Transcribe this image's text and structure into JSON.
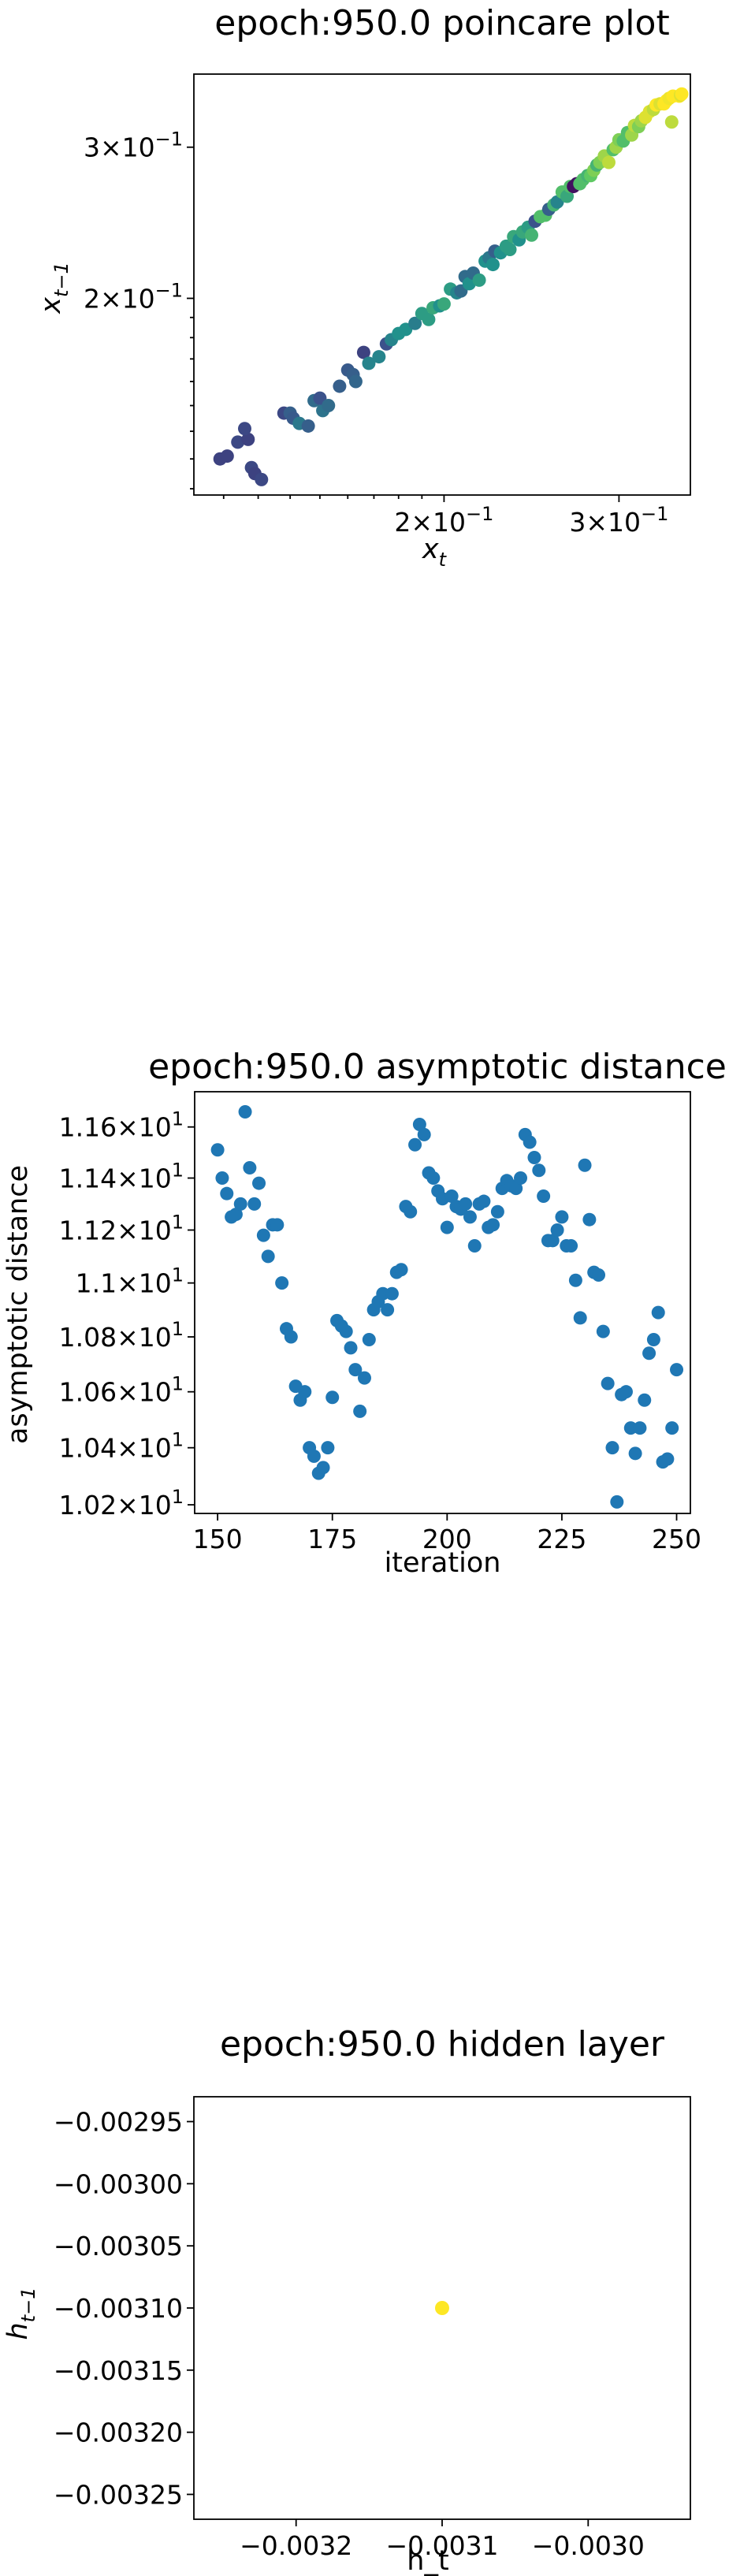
{
  "chart_data": [
    {
      "type": "scatter",
      "title": "epoch:950.0 poincare plot",
      "xlabel": "x_t",
      "ylabel": "x_{t-1}",
      "xscale": "log",
      "yscale": "log",
      "xlim": [
        0.112,
        0.354
      ],
      "ylim": [
        0.118,
        0.365
      ],
      "xticks": [
        {
          "value": 0.2,
          "label": "2 × 10^-1"
        },
        {
          "value": 0.3,
          "label": "3 × 10^-1"
        }
      ],
      "yticks": [
        {
          "value": 0.2,
          "label": "2 × 10^-1"
        },
        {
          "value": 0.3,
          "label": "3 × 10^-1"
        }
      ],
      "colormap": [
        "#440154",
        "#3b528b",
        "#21918c",
        "#5ec962",
        "#fde725"
      ],
      "points": [
        [
          0.119,
          0.13,
          0.2
        ],
        [
          0.121,
          0.131,
          0.2
        ],
        [
          0.124,
          0.136,
          0.22
        ],
        [
          0.127,
          0.137,
          0.2
        ],
        [
          0.126,
          0.141,
          0.22
        ],
        [
          0.128,
          0.127,
          0.22
        ],
        [
          0.129,
          0.125,
          0.2
        ],
        [
          0.131,
          0.123,
          0.22
        ],
        [
          0.138,
          0.147,
          0.22
        ],
        [
          0.14,
          0.147,
          0.3
        ],
        [
          0.141,
          0.145,
          0.28
        ],
        [
          0.143,
          0.143,
          0.4
        ],
        [
          0.146,
          0.142,
          0.3
        ],
        [
          0.148,
          0.152,
          0.35
        ],
        [
          0.151,
          0.148,
          0.38
        ],
        [
          0.15,
          0.153,
          0.25
        ],
        [
          0.153,
          0.15,
          0.35
        ],
        [
          0.157,
          0.158,
          0.3
        ],
        [
          0.16,
          0.165,
          0.28
        ],
        [
          0.162,
          0.163,
          0.3
        ],
        [
          0.163,
          0.16,
          0.33
        ],
        [
          0.166,
          0.173,
          0.2
        ],
        [
          0.168,
          0.168,
          0.45
        ],
        [
          0.172,
          0.171,
          0.45
        ],
        [
          0.175,
          0.177,
          0.25
        ],
        [
          0.177,
          0.179,
          0.45
        ],
        [
          0.18,
          0.182,
          0.5
        ],
        [
          0.183,
          0.184,
          0.5
        ],
        [
          0.187,
          0.187,
          0.42
        ],
        [
          0.19,
          0.192,
          0.55
        ],
        [
          0.193,
          0.189,
          0.55
        ],
        [
          0.195,
          0.195,
          0.6
        ],
        [
          0.198,
          0.196,
          0.5
        ],
        [
          0.2,
          0.197,
          0.6
        ],
        [
          0.203,
          0.205,
          0.55
        ],
        [
          0.206,
          0.203,
          0.45
        ],
        [
          0.208,
          0.204,
          0.35
        ],
        [
          0.21,
          0.212,
          0.35
        ],
        [
          0.212,
          0.208,
          0.5
        ],
        [
          0.214,
          0.214,
          0.35
        ],
        [
          0.217,
          0.21,
          0.55
        ],
        [
          0.22,
          0.221,
          0.5
        ],
        [
          0.222,
          0.223,
          0.4
        ],
        [
          0.224,
          0.219,
          0.5
        ],
        [
          0.225,
          0.227,
          0.3
        ],
        [
          0.228,
          0.226,
          0.5
        ],
        [
          0.231,
          0.23,
          0.55
        ],
        [
          0.233,
          0.228,
          0.55
        ],
        [
          0.235,
          0.236,
          0.6
        ],
        [
          0.238,
          0.234,
          0.5
        ],
        [
          0.24,
          0.239,
          0.6
        ],
        [
          0.243,
          0.242,
          0.55
        ],
        [
          0.245,
          0.237,
          0.65
        ],
        [
          0.247,
          0.246,
          0.25
        ],
        [
          0.25,
          0.249,
          0.7
        ],
        [
          0.253,
          0.25,
          0.7
        ],
        [
          0.255,
          0.254,
          0.3
        ],
        [
          0.258,
          0.257,
          0.65
        ],
        [
          0.26,
          0.259,
          0.45
        ],
        [
          0.263,
          0.266,
          0.7
        ],
        [
          0.266,
          0.263,
          0.6
        ],
        [
          0.268,
          0.27,
          0.7
        ],
        [
          0.27,
          0.27,
          0.05
        ],
        [
          0.272,
          0.272,
          0.05
        ],
        [
          0.274,
          0.272,
          0.7
        ],
        [
          0.276,
          0.275,
          0.7
        ],
        [
          0.279,
          0.278,
          0.65
        ],
        [
          0.281,
          0.278,
          0.75
        ],
        [
          0.283,
          0.282,
          0.8
        ],
        [
          0.285,
          0.286,
          0.65
        ],
        [
          0.287,
          0.288,
          0.8
        ],
        [
          0.29,
          0.293,
          0.85
        ],
        [
          0.293,
          0.288,
          0.9
        ],
        [
          0.296,
          0.298,
          0.7
        ],
        [
          0.298,
          0.3,
          0.85
        ],
        [
          0.3,
          0.306,
          0.8
        ],
        [
          0.303,
          0.305,
          0.7
        ],
        [
          0.306,
          0.312,
          0.7
        ],
        [
          0.309,
          0.31,
          0.85
        ],
        [
          0.311,
          0.318,
          0.9
        ],
        [
          0.314,
          0.317,
          0.8
        ],
        [
          0.316,
          0.322,
          0.85
        ],
        [
          0.319,
          0.325,
          0.95
        ],
        [
          0.322,
          0.33,
          0.95
        ],
        [
          0.325,
          0.332,
          0.9
        ],
        [
          0.327,
          0.336,
          1.0
        ],
        [
          0.33,
          0.337,
          0.95
        ],
        [
          0.333,
          0.337,
          1.0
        ],
        [
          0.335,
          0.34,
          1.0
        ],
        [
          0.337,
          0.342,
          0.98
        ],
        [
          0.34,
          0.344,
          1.0
        ],
        [
          0.345,
          0.344,
          1.0
        ],
        [
          0.346,
          0.345,
          0.95
        ],
        [
          0.347,
          0.346,
          1.0
        ],
        [
          0.339,
          0.321,
          0.9
        ]
      ]
    },
    {
      "type": "scatter",
      "title": "epoch:950.0 asymptotic distance",
      "xlabel": "iteration",
      "ylabel": "asymptotic distance",
      "yscale": "log",
      "xlim": [
        145,
        253
      ],
      "ylim": [
        10.17,
        11.74
      ],
      "xticks": [
        150,
        175,
        200,
        225,
        250
      ],
      "yticks": [
        {
          "value": 10.2,
          "label": "1.02 × 10^1"
        },
        {
          "value": 10.4,
          "label": "1.04 × 10^1"
        },
        {
          "value": 10.6,
          "label": "1.06 × 10^1"
        },
        {
          "value": 10.8,
          "label": "1.08 × 10^1"
        },
        {
          "value": 11.0,
          "label": "1.1 × 10^1"
        },
        {
          "value": 11.2,
          "label": "1.12 × 10^1"
        },
        {
          "value": 11.4,
          "label": "1.14 × 10^1"
        },
        {
          "value": 11.6,
          "label": "1.16 × 10^1"
        }
      ],
      "color": "#1f77b4",
      "x": [
        150,
        151,
        152,
        153,
        154,
        155,
        156,
        157,
        158,
        159,
        160,
        161,
        162,
        163,
        164,
        165,
        166,
        167,
        168,
        169,
        170,
        171,
        172,
        173,
        174,
        175,
        176,
        177,
        178,
        179,
        180,
        181,
        182,
        183,
        184,
        185,
        186,
        187,
        188,
        189,
        190,
        191,
        192,
        193,
        194,
        195,
        196,
        197,
        198,
        199,
        200,
        201,
        202,
        203,
        204,
        205,
        206,
        207,
        208,
        209,
        210,
        211,
        212,
        213,
        214,
        215,
        216,
        217,
        218,
        219,
        220,
        221,
        222,
        223,
        224,
        225,
        226,
        227,
        228,
        229,
        230,
        231,
        232,
        233,
        234,
        235,
        236,
        237,
        238,
        239,
        240,
        241,
        242,
        243,
        244,
        245,
        246,
        247,
        248,
        249,
        250
      ],
      "y": [
        11.51,
        11.4,
        11.34,
        11.25,
        11.26,
        11.3,
        11.66,
        11.44,
        11.3,
        11.38,
        11.18,
        11.1,
        11.22,
        11.22,
        11.0,
        10.83,
        10.8,
        10.62,
        10.57,
        10.6,
        10.4,
        10.37,
        10.31,
        10.33,
        10.4,
        10.58,
        10.86,
        10.84,
        10.82,
        10.76,
        10.68,
        10.53,
        10.65,
        10.79,
        10.9,
        10.93,
        10.96,
        10.9,
        10.96,
        11.04,
        11.05,
        11.29,
        11.27,
        11.53,
        11.61,
        11.57,
        11.42,
        11.4,
        11.35,
        11.32,
        11.21,
        11.33,
        11.29,
        11.28,
        11.3,
        11.25,
        11.14,
        11.3,
        11.31,
        11.21,
        11.22,
        11.27,
        11.36,
        11.39,
        11.37,
        11.36,
        11.4,
        11.57,
        11.54,
        11.48,
        11.43,
        11.33,
        11.16,
        11.16,
        11.2,
        11.25,
        11.14,
        11.14,
        11.01,
        10.87,
        11.45,
        11.24,
        11.04,
        11.03,
        10.82,
        10.63,
        10.4,
        10.21,
        10.59,
        10.6,
        10.47,
        10.38,
        10.47,
        10.57,
        10.74,
        10.79,
        10.89,
        10.35,
        10.36,
        10.47,
        10.68
      ]
    },
    {
      "type": "scatter",
      "title": "epoch:950.0 hidden layer",
      "xlabel": "h_t",
      "ylabel": "h_{t-1}",
      "xlim": [
        -0.00327,
        -0.00293
      ],
      "ylim": [
        -0.00327,
        -0.00293
      ],
      "xticks": [
        -0.0032,
        -0.0031,
        -0.003
      ],
      "xticklabels": [
        "−0.0032",
        "−0.0031",
        "−0.0030"
      ],
      "yticks": [
        -0.00295,
        -0.003,
        -0.00305,
        -0.0031,
        -0.00315,
        -0.0032,
        -0.00325
      ],
      "yticklabels": [
        "−0.00295",
        "−0.00300",
        "−0.00305",
        "−0.00310",
        "−0.00315",
        "−0.00320",
        "−0.00325"
      ],
      "color": "#fde725",
      "points": [
        [
          -0.0031,
          -0.0031
        ]
      ]
    }
  ]
}
